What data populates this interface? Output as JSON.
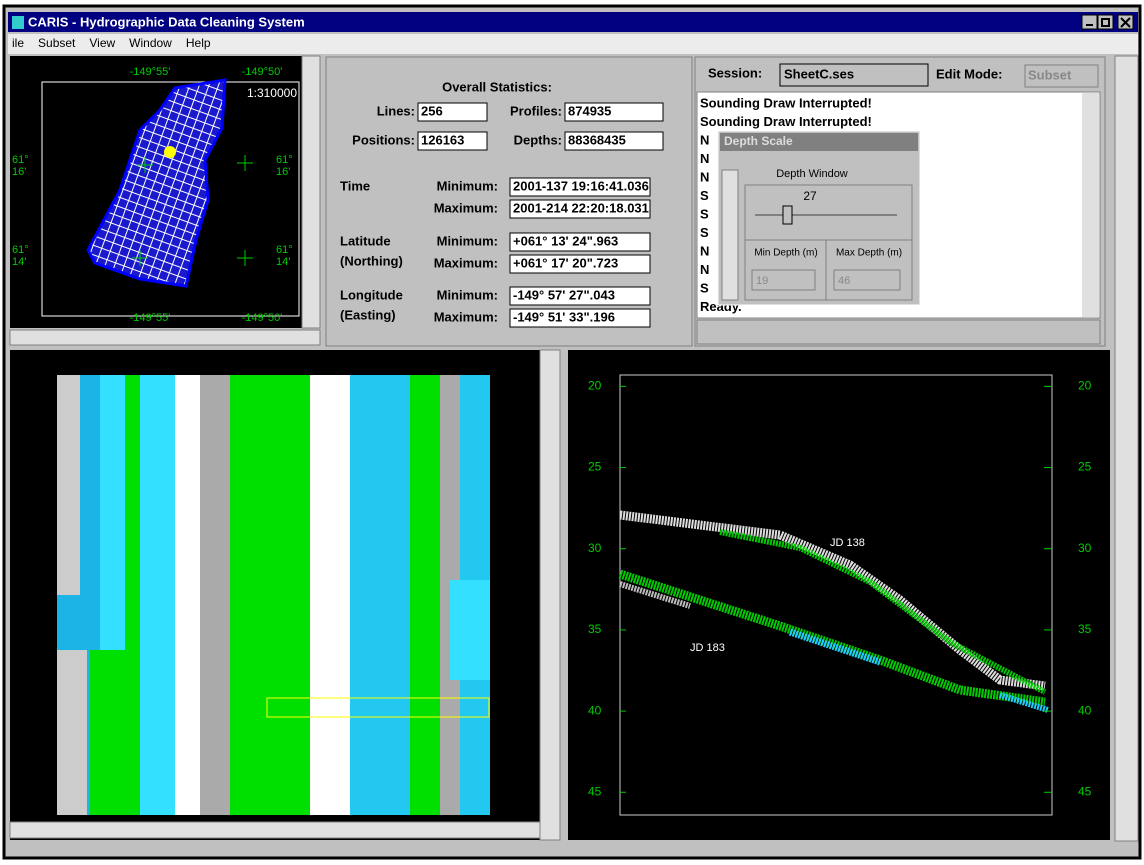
{
  "window": {
    "title": "CARIS - Hydrographic Data Cleaning System"
  },
  "menu": [
    "ile",
    "Subset",
    "View",
    "Window",
    "Help"
  ],
  "overview_map": {
    "scale": "1:310000",
    "longitude_labels": [
      "-149°55'",
      "-149°50'"
    ],
    "latitude_labels": [
      [
        "61°",
        "16'"
      ],
      [
        "61°",
        "14'"
      ]
    ]
  },
  "statistics": {
    "title": "Overall Statistics:",
    "counts": [
      {
        "label": "Lines:",
        "value": 256
      },
      {
        "label": "Profiles:",
        "value": 874935
      },
      {
        "label": "Positions:",
        "value": 126163
      },
      {
        "label": "Depths:",
        "value": 88368435
      }
    ],
    "ranges": [
      {
        "label": [
          "Time"
        ],
        "min_label": "Minimum:",
        "max_label": "Maximum:",
        "min": "2001-137 19:16:41.036",
        "max": "2001-214 22:20:18.031"
      },
      {
        "label": [
          "Latitude",
          "(Northing)"
        ],
        "min_label": "Minimum:",
        "max_label": "Maximum:",
        "min": "+061° 13' 24\".963",
        "max": "+061° 17' 20\".723"
      },
      {
        "label": [
          "Longitude",
          "(Easting)"
        ],
        "min_label": "Minimum:",
        "max_label": "Maximum:",
        "min": "-149° 57' 27\".043",
        "max": "-149° 51' 33\".196"
      }
    ]
  },
  "session": {
    "label": "Session:",
    "file": "SheetC.ses",
    "edit_mode_label": "Edit Mode:",
    "edit_mode": "Subset",
    "log": [
      "Sounding Draw Interrupted!",
      "Sounding Draw Interrupted!",
      "N",
      "N",
      "N",
      "S",
      "S",
      "S",
      "N",
      "N",
      "S",
      "Ready."
    ]
  },
  "depth_scale_dialog": {
    "title": "Depth Scale",
    "group": "Depth Window",
    "value": "27",
    "min_label": "Min Depth (m)",
    "max_label": "Max Depth (m)",
    "min": "19",
    "max": "46"
  },
  "profile_view": {
    "ylim": [
      19.3,
      46.4
    ],
    "yticks": [
      20,
      25,
      30,
      35,
      40,
      45
    ],
    "annotations": [
      "JD 138",
      "JD 183"
    ]
  }
}
